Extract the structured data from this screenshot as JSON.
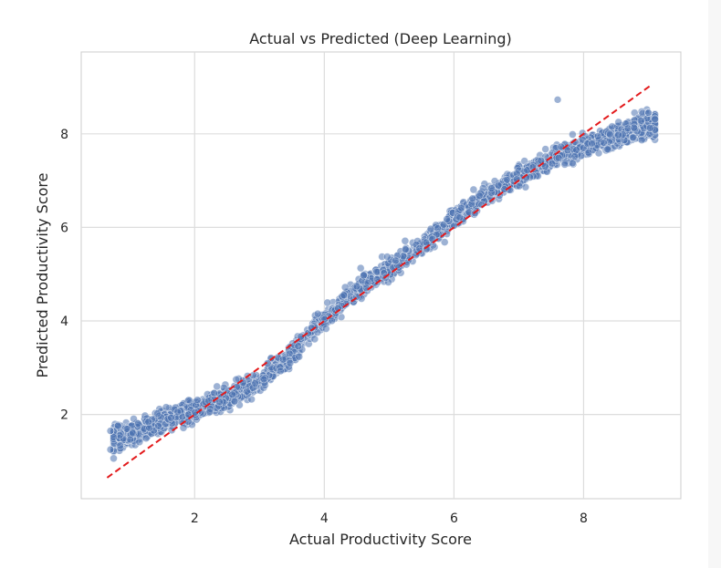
{
  "chart_data": {
    "type": "scatter",
    "title": "Actual vs Predicted (Deep Learning)",
    "xlabel": "Actual Productivity Score",
    "ylabel": "Predicted Productivity Score",
    "xlim": [
      0.25,
      9.5
    ],
    "ylim": [
      0.2,
      9.75
    ],
    "xticks": [
      2,
      4,
      6,
      8
    ],
    "yticks": [
      2,
      4,
      6,
      8
    ],
    "grid": true,
    "point_color": "#4c72b0",
    "reference_line": {
      "style": "dashed",
      "color": "#e31a1c",
      "from": [
        0.65,
        0.65
      ],
      "to": [
        9.05,
        9.05
      ]
    },
    "trend_curve": [
      [
        0.7,
        1.45
      ],
      [
        1.0,
        1.6
      ],
      [
        1.5,
        1.85
      ],
      [
        2.0,
        2.1
      ],
      [
        2.5,
        2.35
      ],
      [
        3.0,
        2.7
      ],
      [
        3.3,
        3.05
      ],
      [
        3.6,
        3.45
      ],
      [
        3.8,
        3.8
      ],
      [
        4.0,
        4.05
      ],
      [
        4.3,
        4.45
      ],
      [
        4.6,
        4.75
      ],
      [
        5.0,
        5.1
      ],
      [
        5.4,
        5.5
      ],
      [
        5.8,
        5.95
      ],
      [
        6.1,
        6.3
      ],
      [
        6.5,
        6.7
      ],
      [
        7.0,
        7.1
      ],
      [
        7.5,
        7.45
      ],
      [
        8.0,
        7.75
      ],
      [
        8.5,
        7.95
      ],
      [
        9.0,
        8.2
      ]
    ],
    "outliers": [
      [
        7.6,
        8.73
      ],
      [
        0.7,
        1.25
      ],
      [
        0.7,
        1.65
      ],
      [
        9.0,
        8.45
      ]
    ]
  }
}
